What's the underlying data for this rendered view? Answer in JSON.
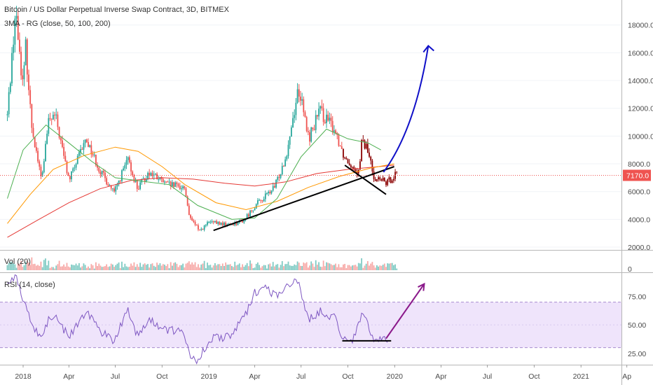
{
  "header": {
    "symbol_title": "Bitcoin / US Dollar Perpetual Inverse Swap Contract, 3D, BITMEX",
    "ma_indicator": "3MA - RG (close, 50, 100, 200)",
    "volume_indicator": "Vol (20)",
    "rsi_indicator": "RSI (14, close)"
  },
  "last_price": {
    "label": "7170.0",
    "value": 7170
  },
  "colors": {
    "up": "#26a69a",
    "down": "#ef5350",
    "highlight": "#8b0000",
    "ma50": "#4caf50",
    "ma100": "#ff9800",
    "ma200": "#e53935",
    "rsi": "#7e57c2",
    "rsi_band": "#efe4fb",
    "projection_price": "#1010c8",
    "projection_rsi": "#8b1a8b",
    "trendline": "#000000"
  },
  "chart_data": [
    {
      "type": "candlestick",
      "title": "Bitcoin / US Dollar Perpetual Inverse Swap Contract, 3D, BITMEX",
      "y_axis": {
        "ticks": [
          2000,
          4000,
          6000,
          8000,
          10000,
          12000,
          14000,
          16000,
          18000
        ],
        "tick_labels": [
          "2000.0",
          "4000.0",
          "6000.0",
          "8000.0",
          "10000.0",
          "12000.0",
          "14000.0",
          "16000.0",
          "18000.0"
        ],
        "ylim": [
          1800,
          19800
        ]
      },
      "x_axis": {
        "tick_labels": [
          "2018",
          "Apr",
          "Jul",
          "Oct",
          "2019",
          "Apr",
          "Jul",
          "Oct",
          "2020",
          "Apr",
          "Jul",
          "Oct",
          "2021",
          "Ap"
        ],
        "tick_dates": [
          "2018-01-01",
          "2018-04-01",
          "2018-07-01",
          "2018-10-01",
          "2019-01-01",
          "2019-04-01",
          "2019-07-01",
          "2019-10-01",
          "2020-01-01",
          "2020-04-01",
          "2020-07-01",
          "2020-10-01",
          "2021-01-01",
          "2021-04-01"
        ]
      },
      "price_path": [
        {
          "date": "2017-12-01",
          "close": 11500
        },
        {
          "date": "2017-12-17",
          "close": 19000
        },
        {
          "date": "2018-01-01",
          "close": 13500
        },
        {
          "date": "2018-01-06",
          "close": 16500
        },
        {
          "date": "2018-01-17",
          "close": 11000
        },
        {
          "date": "2018-02-06",
          "close": 6800
        },
        {
          "date": "2018-02-20",
          "close": 11000
        },
        {
          "date": "2018-03-05",
          "close": 11500
        },
        {
          "date": "2018-04-01",
          "close": 6800
        },
        {
          "date": "2018-05-05",
          "close": 9800
        },
        {
          "date": "2018-06-01",
          "close": 7500
        },
        {
          "date": "2018-06-29",
          "close": 5900
        },
        {
          "date": "2018-07-25",
          "close": 8300
        },
        {
          "date": "2018-08-14",
          "close": 6200
        },
        {
          "date": "2018-09-05",
          "close": 7400
        },
        {
          "date": "2018-10-10",
          "close": 6500
        },
        {
          "date": "2018-11-14",
          "close": 6300
        },
        {
          "date": "2018-11-25",
          "close": 4000
        },
        {
          "date": "2018-12-15",
          "close": 3200
        },
        {
          "date": "2019-01-01",
          "close": 3800
        },
        {
          "date": "2019-02-10",
          "close": 3600
        },
        {
          "date": "2019-03-10",
          "close": 3900
        },
        {
          "date": "2019-04-02",
          "close": 5000
        },
        {
          "date": "2019-05-10",
          "close": 6300
        },
        {
          "date": "2019-06-01",
          "close": 8500
        },
        {
          "date": "2019-06-26",
          "close": 13500
        },
        {
          "date": "2019-07-16",
          "close": 9800
        },
        {
          "date": "2019-08-06",
          "close": 11800
        },
        {
          "date": "2019-09-05",
          "close": 10500
        },
        {
          "date": "2019-09-24",
          "close": 8500
        },
        {
          "date": "2019-10-23",
          "close": 7400
        },
        {
          "date": "2019-10-27",
          "close": 9500
        },
        {
          "date": "2019-11-07",
          "close": 9200
        },
        {
          "date": "2019-11-22",
          "close": 7000
        },
        {
          "date": "2019-12-17",
          "close": 6600
        },
        {
          "date": "2019-12-31",
          "close": 7200
        },
        {
          "date": "2020-01-06",
          "close": 7500
        }
      ],
      "highlighted_range": [
        "2019-09-20",
        "2020-01-06"
      ],
      "ma50": [
        {
          "date": "2017-12-01",
          "value": 5500
        },
        {
          "date": "2018-01-01",
          "value": 9000
        },
        {
          "date": "2018-02-15",
          "value": 10800
        },
        {
          "date": "2018-04-01",
          "value": 9500
        },
        {
          "date": "2018-05-15",
          "value": 8200
        },
        {
          "date": "2018-07-01",
          "value": 7000
        },
        {
          "date": "2018-09-01",
          "value": 6700
        },
        {
          "date": "2018-10-15",
          "value": 6500
        },
        {
          "date": "2018-12-10",
          "value": 5000
        },
        {
          "date": "2019-02-15",
          "value": 4000
        },
        {
          "date": "2019-04-01",
          "value": 4100
        },
        {
          "date": "2019-05-15",
          "value": 5500
        },
        {
          "date": "2019-07-01",
          "value": 8500
        },
        {
          "date": "2019-08-20",
          "value": 10500
        },
        {
          "date": "2019-10-01",
          "value": 9800
        },
        {
          "date": "2019-11-10",
          "value": 9500
        },
        {
          "date": "2019-12-05",
          "value": 9000
        }
      ],
      "ma100": [
        {
          "date": "2017-12-01",
          "value": 3700
        },
        {
          "date": "2018-01-15",
          "value": 5800
        },
        {
          "date": "2018-03-01",
          "value": 7600
        },
        {
          "date": "2018-05-01",
          "value": 8600
        },
        {
          "date": "2018-07-01",
          "value": 9200
        },
        {
          "date": "2018-08-15",
          "value": 8900
        },
        {
          "date": "2018-10-01",
          "value": 7800
        },
        {
          "date": "2018-11-15",
          "value": 6500
        },
        {
          "date": "2019-01-15",
          "value": 5200
        },
        {
          "date": "2019-03-15",
          "value": 4700
        },
        {
          "date": "2019-05-15",
          "value": 5300
        },
        {
          "date": "2019-07-15",
          "value": 6300
        },
        {
          "date": "2019-09-15",
          "value": 7100
        },
        {
          "date": "2019-11-15",
          "value": 7700
        },
        {
          "date": "2019-12-31",
          "value": 8000
        }
      ],
      "ma200": [
        {
          "date": "2017-12-01",
          "value": 2700
        },
        {
          "date": "2018-02-01",
          "value": 4000
        },
        {
          "date": "2018-04-01",
          "value": 5200
        },
        {
          "date": "2018-06-01",
          "value": 6200
        },
        {
          "date": "2018-08-01",
          "value": 6800
        },
        {
          "date": "2018-10-01",
          "value": 7000
        },
        {
          "date": "2018-12-01",
          "value": 6900
        },
        {
          "date": "2019-02-01",
          "value": 6600
        },
        {
          "date": "2019-04-01",
          "value": 6400
        },
        {
          "date": "2019-06-01",
          "value": 6700
        },
        {
          "date": "2019-08-01",
          "value": 7300
        },
        {
          "date": "2019-10-01",
          "value": 7600
        },
        {
          "date": "2019-12-01",
          "value": 7800
        },
        {
          "date": "2019-12-31",
          "value": 7900
        }
      ],
      "annotations": [
        {
          "kind": "trendline",
          "points": [
            {
              "date": "2019-01-10",
              "value": 3200
            },
            {
              "date": "2019-12-31",
              "value": 7800
            }
          ]
        },
        {
          "kind": "trendline",
          "points": [
            {
              "date": "2019-09-25",
              "value": 7900
            },
            {
              "date": "2019-12-15",
              "value": 5800
            }
          ]
        },
        {
          "kind": "arrow",
          "points": [
            {
              "date": "2019-12-10",
              "value": 7400
            },
            {
              "date": "2020-02-10",
              "value": 10500
            },
            {
              "date": "2020-03-07",
              "value": 16500
            }
          ]
        }
      ],
      "last_price_line": 7170
    },
    {
      "type": "bar",
      "title": "Vol (20)",
      "y_axis": {
        "ticks": [
          0
        ],
        "tick_labels": [
          "0"
        ]
      },
      "note": "volume bars colored by candle direction"
    },
    {
      "type": "line",
      "title": "RSI (14, close)",
      "y_axis": {
        "ticks": [
          25,
          50,
          75
        ],
        "tick_labels": [
          "25.00",
          "50.00",
          "75.00"
        ],
        "ylim": [
          15,
          95
        ]
      },
      "band": [
        30,
        70
      ],
      "rsi_path": [
        {
          "date": "2017-12-01",
          "value": 88
        },
        {
          "date": "2017-12-17",
          "value": 93
        },
        {
          "date": "2018-01-01",
          "value": 70
        },
        {
          "date": "2018-01-20",
          "value": 50
        },
        {
          "date": "2018-02-06",
          "value": 38
        },
        {
          "date": "2018-02-20",
          "value": 55
        },
        {
          "date": "2018-03-05",
          "value": 58
        },
        {
          "date": "2018-04-01",
          "value": 39
        },
        {
          "date": "2018-05-05",
          "value": 63
        },
        {
          "date": "2018-06-01",
          "value": 45
        },
        {
          "date": "2018-06-29",
          "value": 36
        },
        {
          "date": "2018-07-25",
          "value": 65
        },
        {
          "date": "2018-08-14",
          "value": 40
        },
        {
          "date": "2018-09-05",
          "value": 54
        },
        {
          "date": "2018-10-10",
          "value": 46
        },
        {
          "date": "2018-11-14",
          "value": 42
        },
        {
          "date": "2018-11-25",
          "value": 25
        },
        {
          "date": "2018-12-10",
          "value": 18
        },
        {
          "date": "2018-12-25",
          "value": 30
        },
        {
          "date": "2019-01-10",
          "value": 38
        },
        {
          "date": "2019-02-10",
          "value": 40
        },
        {
          "date": "2019-03-10",
          "value": 55
        },
        {
          "date": "2019-04-02",
          "value": 79
        },
        {
          "date": "2019-04-20",
          "value": 84
        },
        {
          "date": "2019-05-15",
          "value": 75
        },
        {
          "date": "2019-06-01",
          "value": 86
        },
        {
          "date": "2019-06-26",
          "value": 87
        },
        {
          "date": "2019-07-16",
          "value": 54
        },
        {
          "date": "2019-08-06",
          "value": 62
        },
        {
          "date": "2019-09-05",
          "value": 57
        },
        {
          "date": "2019-09-24",
          "value": 36
        },
        {
          "date": "2019-10-10",
          "value": 38
        },
        {
          "date": "2019-10-27",
          "value": 57
        },
        {
          "date": "2019-11-07",
          "value": 53
        },
        {
          "date": "2019-11-22",
          "value": 36
        },
        {
          "date": "2019-12-10",
          "value": 37
        },
        {
          "date": "2019-12-20",
          "value": 38
        }
      ],
      "annotations": [
        {
          "kind": "trendline",
          "points": [
            {
              "date": "2019-09-20",
              "value": 36
            },
            {
              "date": "2019-12-25",
              "value": 36
            }
          ]
        },
        {
          "kind": "arrow",
          "points": [
            {
              "date": "2019-12-15",
              "value": 38
            },
            {
              "date": "2020-02-28",
              "value": 86
            }
          ]
        }
      ]
    }
  ]
}
